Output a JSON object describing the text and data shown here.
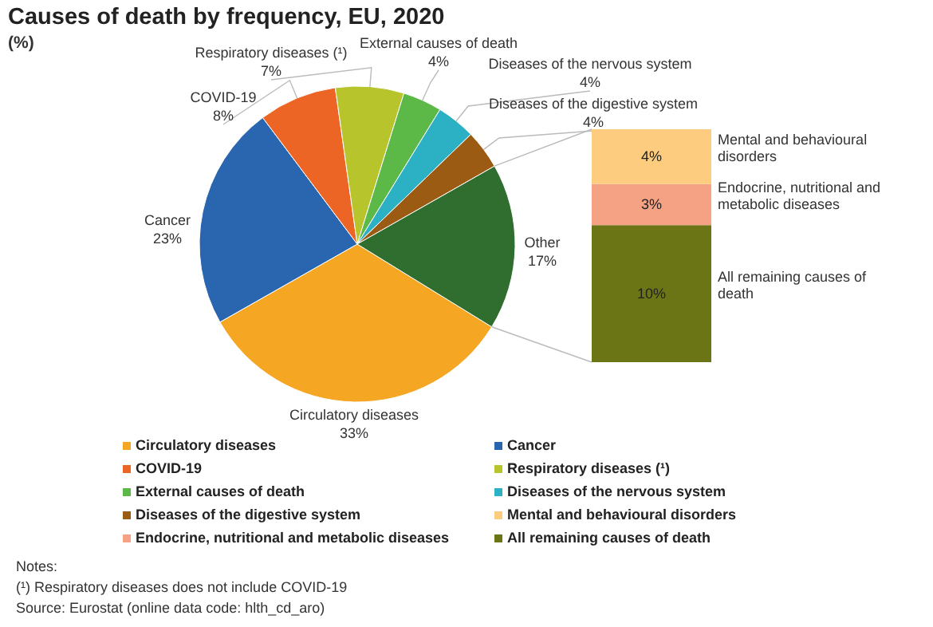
{
  "chart_data": [
    {
      "type": "pie",
      "title": "Causes of death by frequency, EU, 2020",
      "subtitle": "(%)",
      "categories": [
        "Circulatory diseases",
        "Cancer",
        "COVID-19",
        "Respiratory diseases (¹)",
        "External causes of death",
        "Diseases of the nervous system",
        "Diseases of the digestive system",
        "Other"
      ],
      "values": [
        33,
        23,
        8,
        7,
        4,
        4,
        4,
        17
      ],
      "value_labels": [
        "33%",
        "23%",
        "8%",
        "7%",
        "4%",
        "4%",
        "4%",
        "17%"
      ],
      "colors": [
        "#f5a623",
        "#2a66b0",
        "#ec6525",
        "#b8c42c",
        "#5cb947",
        "#2cb1c4",
        "#9c5b12",
        "#2f6e2e"
      ],
      "legend": "bottom",
      "annotations": [
        "Notes:",
        "(¹) Respiratory diseases does not include COVID-19",
        "Source: Eurostat (online data code: hlth_cd_aro)"
      ]
    },
    {
      "type": "bar",
      "stacked": true,
      "categories": [
        null
      ],
      "legend": "bottom",
      "series": [
        {
          "name": "All remaining causes of death",
          "color": "#6c7516",
          "values": [
            10
          ],
          "value_labels": [
            "10%"
          ]
        },
        {
          "name": "Endocrine, nutritional and metabolic diseases",
          "color": "#f5a284",
          "values": [
            3
          ],
          "value_labels": [
            "3%"
          ]
        },
        {
          "name": "Mental and behavioural disorders",
          "color": "#fdcc7e",
          "values": [
            4
          ],
          "value_labels": [
            "4%"
          ]
        }
      ]
    }
  ]
}
